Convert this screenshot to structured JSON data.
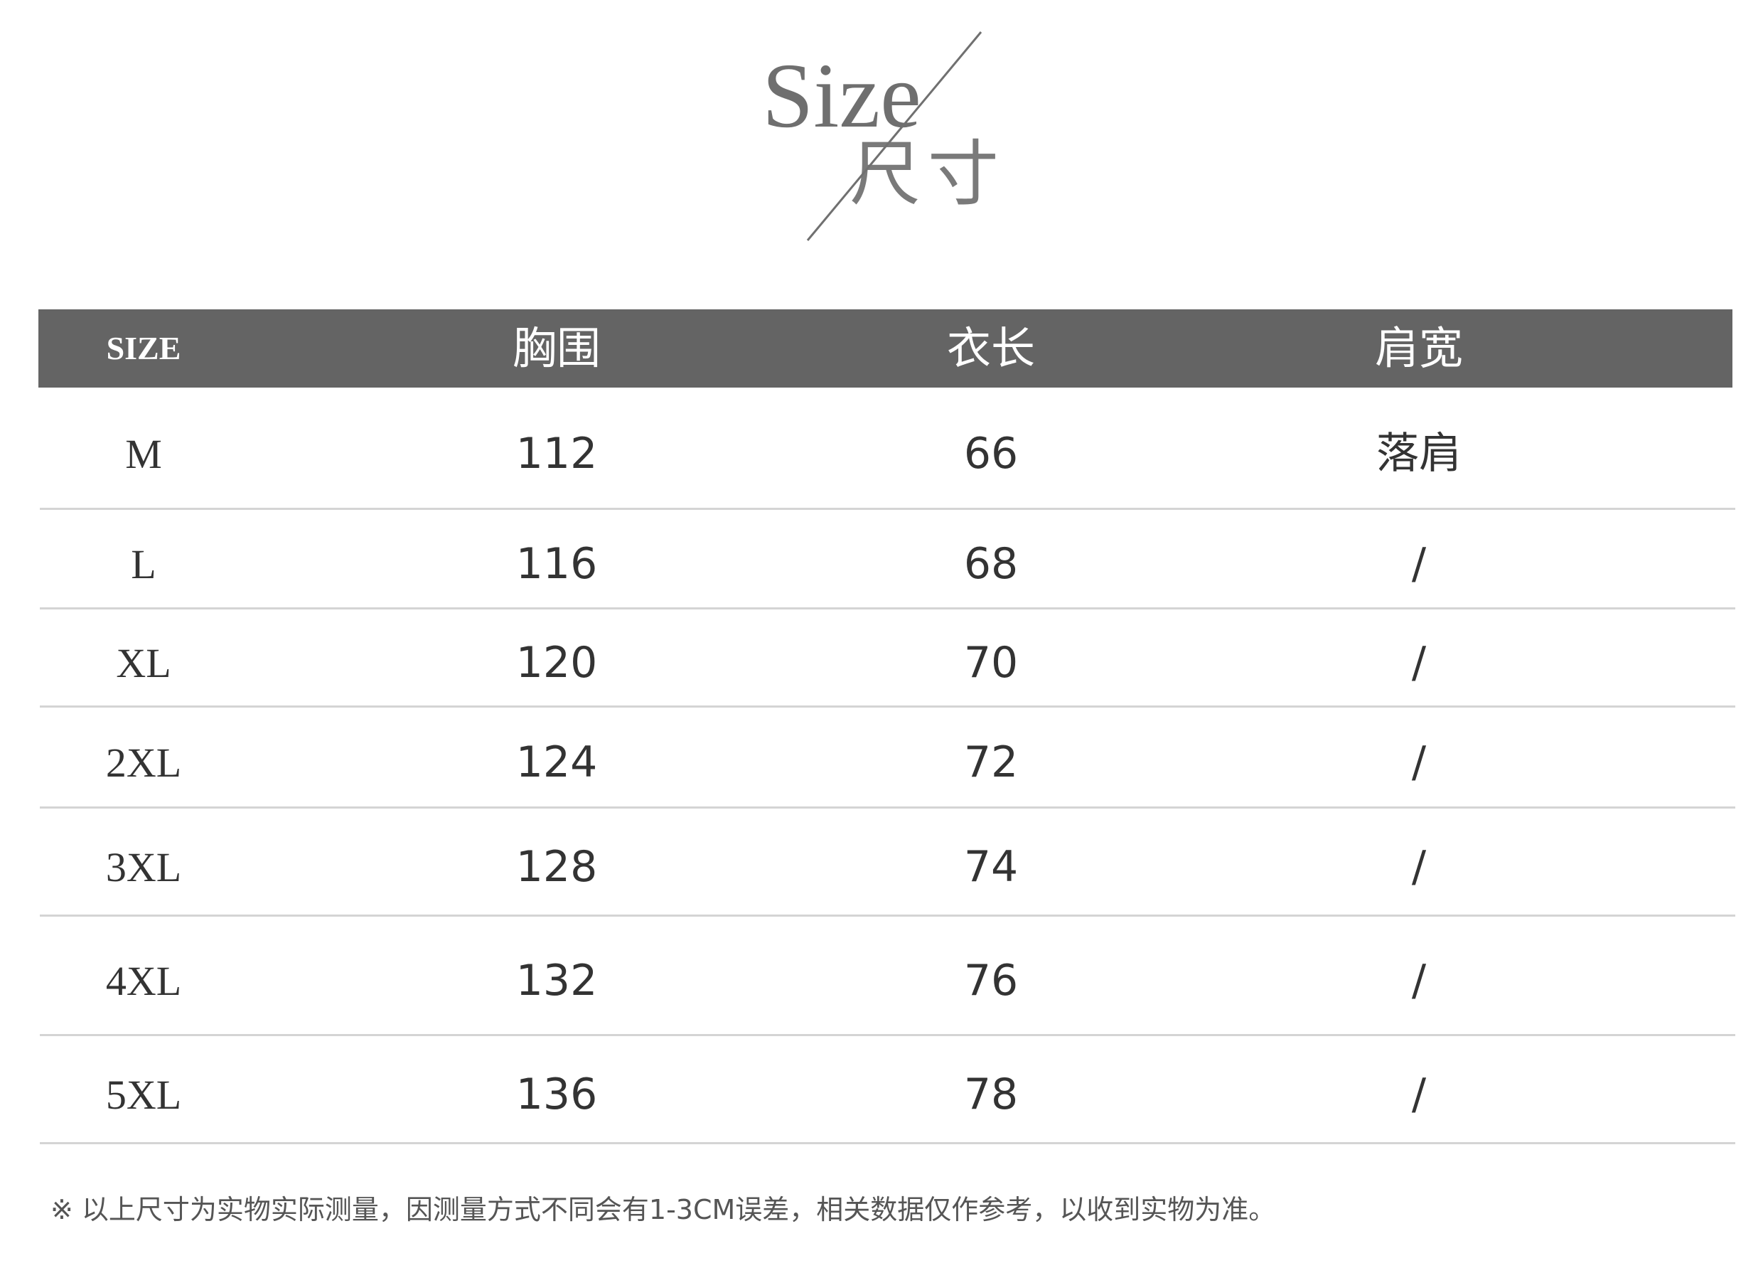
{
  "title": {
    "en": "Size",
    "cn": "尺寸"
  },
  "table": {
    "headers": [
      "SIZE",
      "胸围",
      "衣长",
      "肩宽"
    ],
    "rows": [
      [
        "M",
        "112",
        "66",
        "落肩"
      ],
      [
        "L",
        "116",
        "68",
        "/"
      ],
      [
        "XL",
        "120",
        "70",
        "/"
      ],
      [
        "2XL",
        "124",
        "72",
        "/"
      ],
      [
        "3XL",
        "128",
        "74",
        "/"
      ],
      [
        "4XL",
        "132",
        "76",
        "/"
      ],
      [
        "5XL",
        "136",
        "78",
        "/"
      ]
    ]
  },
  "footnote": "※ 以上尺寸为实物实际测量，因测量方式不同会有1-3CM误差，相关数据仅作参考，以收到实物为准。",
  "colors": {
    "header_bg": "#646464",
    "header_text": "#ffffff",
    "divider": "#d4d4d4"
  }
}
